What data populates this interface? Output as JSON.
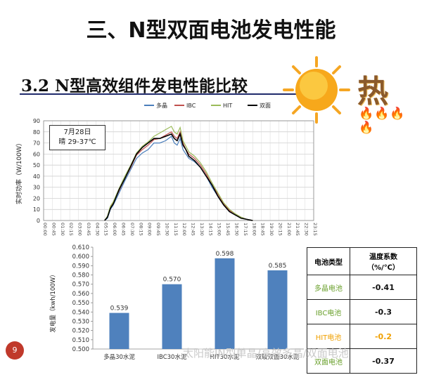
{
  "slide": {
    "title": "三、N型双面电池发电性能",
    "subtitle": "3.2 N型高效组件发电性能比较",
    "hot_word": "热",
    "page_number": "9",
    "watermark": "太阳能IN型单晶/高效多晶/双面电池"
  },
  "colors": {
    "series_multi": "#4a7ebb",
    "series_ibc": "#c0504d",
    "series_hit": "#9bbb59",
    "series_double": "#000000",
    "bar": "#4f81bd",
    "label_green": "#6aa02c",
    "label_orange": "#f0a000"
  },
  "chart_data": [
    {
      "type": "line",
      "title": "",
      "ylabel": "实时功率（W/100W）",
      "xlabel": "",
      "ylim": [
        0,
        90
      ],
      "y_ticks": [
        "0",
        "10",
        "20",
        "30",
        "40",
        "50",
        "60",
        "70",
        "80",
        "90"
      ],
      "x_ticks": [
        "00:00",
        "00:45",
        "01:30",
        "02:15",
        "03:00",
        "03:45",
        "04:30",
        "05:15",
        "06:00",
        "06:45",
        "07:30",
        "08:15",
        "09:00",
        "09:45",
        "10:30",
        "11:15",
        "12:00",
        "12:45",
        "13:30",
        "14:15",
        "15:00",
        "15:45",
        "16:30",
        "17:15",
        "18:00",
        "18:45",
        "19:30",
        "20:15",
        "21:00",
        "21:45",
        "22:30",
        "23:15"
      ],
      "annotation_line1": "7月28日",
      "annotation_line2": "晴 29-37℃",
      "legend_position": "top",
      "grid": true,
      "x_hours": [
        5.25,
        5.5,
        5.75,
        6.0,
        6.5,
        7.0,
        7.5,
        8.0,
        8.5,
        9.0,
        9.5,
        10.0,
        10.5,
        11.0,
        11.25,
        11.5,
        11.75,
        12.0,
        12.25,
        12.5,
        13.0,
        13.5,
        14.0,
        14.5,
        15.0,
        15.5,
        16.0,
        16.5,
        17.0,
        17.5,
        18.0
      ],
      "series": [
        {
          "name": "多晶",
          "values": [
            0,
            2,
            10,
            14,
            25,
            36,
            46,
            56,
            61,
            64,
            70,
            70,
            72,
            76,
            70,
            68,
            74,
            64,
            60,
            56,
            53,
            48,
            40,
            30,
            22,
            14,
            8,
            5,
            3,
            1,
            0
          ]
        },
        {
          "name": "IBC",
          "values": [
            0,
            3,
            12,
            16,
            27,
            38,
            48,
            59,
            64,
            68,
            73,
            74,
            77,
            80,
            76,
            74,
            80,
            70,
            64,
            60,
            56,
            50,
            42,
            32,
            24,
            15,
            9,
            6,
            3,
            1,
            0
          ]
        },
        {
          "name": "HIT",
          "values": [
            0,
            4,
            13,
            17,
            29,
            40,
            50,
            61,
            67,
            71,
            76,
            79,
            82,
            85,
            80,
            78,
            84,
            72,
            67,
            62,
            58,
            52,
            44,
            34,
            25,
            16,
            10,
            6,
            3,
            1,
            0
          ]
        },
        {
          "name": "双面",
          "values": [
            0,
            3,
            11,
            15,
            28,
            38,
            49,
            60,
            66,
            70,
            74,
            74,
            76,
            78,
            74,
            72,
            78,
            68,
            64,
            58,
            54,
            48,
            40,
            32,
            22,
            14,
            8,
            5,
            2,
            1,
            0
          ]
        }
      ]
    },
    {
      "type": "bar",
      "title": "",
      "ylabel": "发电量（kwh/100W）",
      "xlabel": "",
      "ylim": [
        0.5,
        0.61
      ],
      "y_ticks": [
        "0.500",
        "0.510",
        "0.520",
        "0.530",
        "0.540",
        "0.550",
        "0.560",
        "0.570",
        "0.580",
        "0.590",
        "0.600",
        "0.610"
      ],
      "categories": [
        "多晶30水泥",
        "IBC30水泥",
        "HIT30水泥",
        "双玻双面30水泥"
      ],
      "values": [
        0.539,
        0.57,
        0.598,
        0.585
      ],
      "value_labels": [
        "0.539",
        "0.570",
        "0.598",
        "0.585"
      ],
      "grid": false
    },
    {
      "type": "table",
      "headers": [
        "电池类型",
        "温度系数",
        "（%/℃）"
      ],
      "rows": [
        {
          "name": "多晶电池",
          "value": "-0.41",
          "color": "#6aa02c"
        },
        {
          "name": "IBC电池",
          "value": "-0.3",
          "color": "#6aa02c"
        },
        {
          "name": "HIT电池",
          "value": "-0.2",
          "color": "#f0a000"
        },
        {
          "name": "双面电池",
          "value": "-0.37",
          "color": "#6aa02c"
        }
      ]
    }
  ]
}
